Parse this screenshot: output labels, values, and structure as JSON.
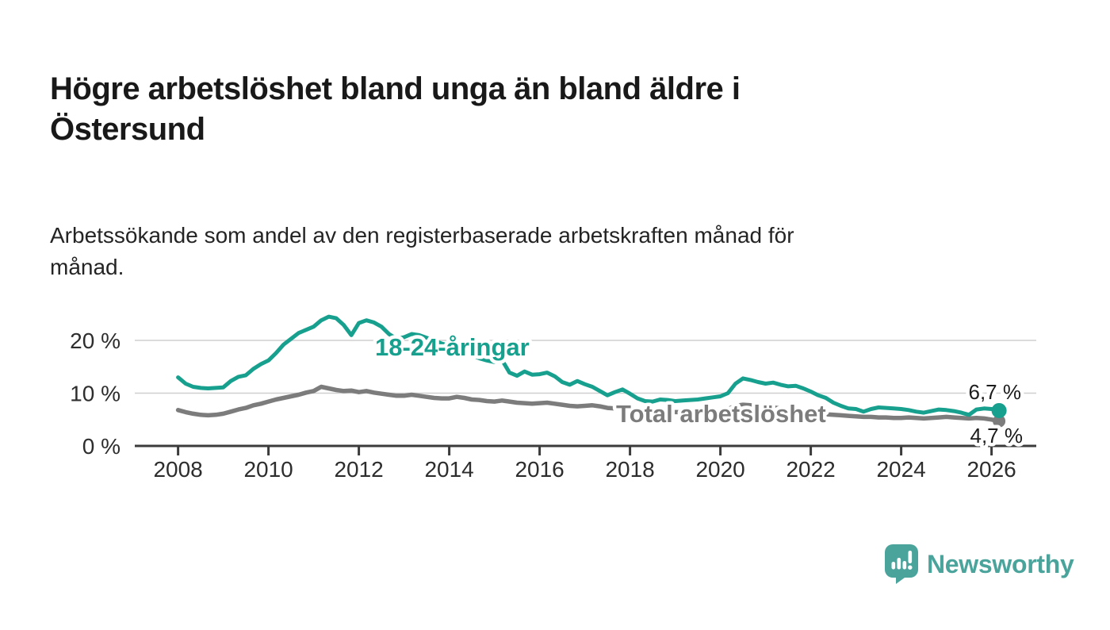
{
  "header": {
    "title_lines": [
      "Högre arbetslöshet bland unga än bland äldre i",
      "Östersund"
    ],
    "subtitle_lines": [
      "Arbetssökande som andel av den registerbaserade arbetskraften månad för",
      "månad."
    ]
  },
  "chart_data": {
    "type": "line",
    "title": "Högre arbetslöshet bland unga än bland äldre i Östersund",
    "xlabel": "",
    "ylabel": "",
    "x_unit": "decimal_year_monthly_series",
    "x_start": 2008.0,
    "x_step_months": 2,
    "x_end": 2026.17,
    "xlim": [
      2007.05,
      2027.0
    ],
    "ylim": [
      0,
      26
    ],
    "grid": "horizontal_only",
    "x_ticks": [
      2008,
      2010,
      2012,
      2014,
      2016,
      2018,
      2020,
      2022,
      2024,
      2026
    ],
    "y_ticks": [
      {
        "value": 0,
        "label": "0 %"
      },
      {
        "value": 10,
        "label": "10 %"
      },
      {
        "value": 20,
        "label": "20 %"
      }
    ],
    "series": [
      {
        "name": "18-24-åringar",
        "color": "#18a08f",
        "end_label": "6,7 %",
        "end_value": 6.7,
        "values": [
          13.0,
          11.8,
          11.2,
          11.0,
          10.9,
          11.0,
          11.1,
          12.3,
          13.1,
          13.4,
          14.6,
          15.5,
          16.2,
          17.6,
          19.2,
          20.3,
          21.4,
          22.0,
          22.6,
          23.8,
          24.5,
          24.2,
          22.9,
          21.0,
          23.3,
          23.8,
          23.4,
          22.6,
          21.2,
          20.3,
          20.6,
          21.2,
          21.0,
          20.5,
          20.0,
          19.4,
          19.0,
          18.4,
          17.8,
          17.2,
          16.6,
          16.2,
          15.9,
          16.3,
          13.9,
          13.3,
          14.1,
          13.5,
          13.6,
          13.9,
          13.2,
          12.1,
          11.6,
          12.3,
          11.7,
          11.2,
          10.4,
          9.6,
          10.2,
          10.7,
          9.9,
          9.0,
          8.5,
          8.4,
          8.8,
          8.7,
          8.5,
          8.6,
          8.7,
          8.8,
          9.0,
          9.2,
          9.4,
          10.0,
          11.8,
          12.8,
          12.5,
          12.1,
          11.8,
          12.0,
          11.6,
          11.3,
          11.4,
          10.9,
          10.3,
          9.6,
          9.1,
          8.2,
          7.6,
          7.1,
          7.0,
          6.5,
          7.0,
          7.3,
          7.2,
          7.1,
          7.0,
          6.8,
          6.5,
          6.3,
          6.6,
          6.9,
          6.8,
          6.6,
          6.3,
          5.9,
          6.9,
          7.1,
          7.0,
          6.7
        ]
      },
      {
        "name": "Total arbetslöshet",
        "color": "#7c7c7c",
        "end_label": "4,7 %",
        "end_value": 4.7,
        "values": [
          6.8,
          6.4,
          6.1,
          5.9,
          5.8,
          5.9,
          6.1,
          6.5,
          6.9,
          7.2,
          7.7,
          8.0,
          8.4,
          8.8,
          9.1,
          9.4,
          9.7,
          10.1,
          10.4,
          11.2,
          10.9,
          10.6,
          10.4,
          10.5,
          10.2,
          10.4,
          10.1,
          9.9,
          9.7,
          9.5,
          9.5,
          9.7,
          9.5,
          9.3,
          9.1,
          9.0,
          9.0,
          9.3,
          9.1,
          8.8,
          8.7,
          8.5,
          8.4,
          8.6,
          8.4,
          8.2,
          8.1,
          8.0,
          8.1,
          8.2,
          8.0,
          7.8,
          7.6,
          7.5,
          7.6,
          7.7,
          7.5,
          7.2,
          7.1,
          7.0,
          6.9,
          6.8,
          6.6,
          6.5,
          6.6,
          6.5,
          6.4,
          6.4,
          6.3,
          6.3,
          6.4,
          6.5,
          6.6,
          7.0,
          7.6,
          7.8,
          7.7,
          7.5,
          7.4,
          7.3,
          7.1,
          6.9,
          6.7,
          6.5,
          6.3,
          6.1,
          6.0,
          5.9,
          5.8,
          5.7,
          5.6,
          5.5,
          5.5,
          5.4,
          5.4,
          5.3,
          5.3,
          5.4,
          5.3,
          5.2,
          5.3,
          5.4,
          5.5,
          5.4,
          5.3,
          5.2,
          5.3,
          5.2,
          5.0,
          4.7
        ]
      }
    ],
    "legend_position": "inline_labels_on_lines"
  },
  "logo": {
    "text": "Newsworthy",
    "color": "#4aa49c"
  }
}
